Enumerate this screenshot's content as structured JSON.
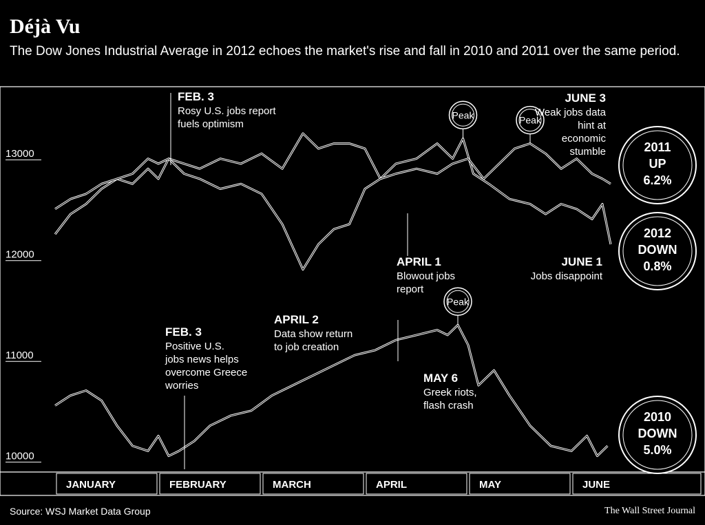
{
  "header": {
    "title": "Déjà Vu",
    "subtitle": "The Dow Jones Industrial Average in 2012 echoes the market's rise and fall in 2010 and 2011 over the same period."
  },
  "footer": {
    "source": "Source: WSJ Market Data Group",
    "publisher": "The Wall Street Journal"
  },
  "colors": {
    "background": "#000000",
    "line": "#ffffff"
  },
  "peak_label": "Peak",
  "badges": [
    {
      "year": "2011",
      "direction": "UP",
      "change": "6.2%"
    },
    {
      "year": "2012",
      "direction": "DOWN",
      "change": "0.8%"
    },
    {
      "year": "2010",
      "direction": "DOWN",
      "change": "5.0%"
    }
  ],
  "annotations": [
    {
      "title": "FEB. 3",
      "lines": [
        "Rosy U.S. jobs report",
        "fuels optimism"
      ]
    },
    {
      "title": "JUNE 3",
      "lines": [
        "Weak jobs data",
        "hint at",
        "economic",
        "stumble"
      ]
    },
    {
      "title": "APRIL 1",
      "lines": [
        "Blowout jobs",
        "report"
      ]
    },
    {
      "title": "JUNE 1",
      "lines": [
        "Jobs disappoint"
      ]
    },
    {
      "title": "APRIL 2",
      "lines": [
        "Data show return",
        "to job creation"
      ]
    },
    {
      "title": "FEB. 3",
      "lines": [
        "Positive U.S.",
        "jobs news helps",
        "overcome Greece",
        "worries"
      ]
    },
    {
      "title": "MAY 6",
      "lines": [
        "Greek riots,",
        "flash crash"
      ]
    }
  ],
  "chart_data": {
    "type": "line",
    "title": "Déjà Vu",
    "subtitle": "The Dow Jones Industrial Average in 2012 echoes the market's rise and fall in 2010 and 2011 over the same period.",
    "xlabel": "",
    "ylabel": "",
    "x_categories": [
      "JANUARY",
      "FEBRUARY",
      "MARCH",
      "APRIL",
      "MAY",
      "JUNE"
    ],
    "y_ticks": [
      "13000",
      "12000",
      "11000",
      "10000"
    ],
    "y_tick_values": [
      13000,
      12000,
      11000,
      10000
    ],
    "ylim": [
      9950,
      13500
    ],
    "xlim": [
      0,
      5.4
    ],
    "grid": false,
    "series": [
      {
        "name": "2011",
        "x": [
          0,
          0.15,
          0.3,
          0.45,
          0.6,
          0.75,
          0.9,
          1.0,
          1.1,
          1.25,
          1.4,
          1.6,
          1.8,
          2.0,
          2.2,
          2.4,
          2.55,
          2.7,
          2.85,
          3.0,
          3.15,
          3.3,
          3.5,
          3.7,
          3.85,
          3.95,
          4.05,
          4.2,
          4.4,
          4.6,
          4.75,
          4.9,
          5.05,
          5.2,
          5.3,
          5.38
        ],
        "values": [
          12200,
          12400,
          12500,
          12650,
          12750,
          12700,
          12850,
          12750,
          12950,
          12900,
          12850,
          12950,
          12900,
          13000,
          12850,
          13200,
          13050,
          13100,
          13100,
          13050,
          12750,
          12900,
          12950,
          13100,
          12950,
          13150,
          12800,
          12700,
          12550,
          12500,
          12400,
          12500,
          12450,
          12350,
          12500,
          12100
        ]
      },
      {
        "name": "2012",
        "x": [
          0,
          0.15,
          0.3,
          0.45,
          0.6,
          0.75,
          0.9,
          1.0,
          1.1,
          1.25,
          1.4,
          1.6,
          1.8,
          2.0,
          2.2,
          2.4,
          2.55,
          2.7,
          2.85,
          3.0,
          3.15,
          3.3,
          3.5,
          3.7,
          3.85,
          4.0,
          4.15,
          4.3,
          4.45,
          4.6,
          4.75,
          4.9,
          5.05,
          5.2,
          5.3,
          5.38
        ],
        "values": [
          12450,
          12550,
          12600,
          12700,
          12750,
          12800,
          12950,
          12900,
          12950,
          12800,
          12750,
          12650,
          12700,
          12600,
          12300,
          11850,
          12100,
          12250,
          12300,
          12650,
          12750,
          12800,
          12850,
          12800,
          12900,
          12950,
          12750,
          12900,
          13050,
          13100,
          13000,
          12850,
          12950,
          12800,
          12750,
          12700
        ]
      },
      {
        "name": "2010",
        "x": [
          0,
          0.15,
          0.3,
          0.45,
          0.6,
          0.75,
          0.9,
          1.0,
          1.1,
          1.2,
          1.35,
          1.5,
          1.7,
          1.9,
          2.1,
          2.3,
          2.5,
          2.7,
          2.9,
          3.1,
          3.3,
          3.5,
          3.7,
          3.8,
          3.9,
          4.0,
          4.1,
          4.25,
          4.4,
          4.6,
          4.8,
          5.0,
          5.15,
          5.25,
          5.35
        ],
        "values": [
          10500,
          10600,
          10650,
          10550,
          10300,
          10100,
          10050,
          10200,
          10000,
          10050,
          10150,
          10300,
          10400,
          10450,
          10600,
          10700,
          10800,
          10900,
          11000,
          11050,
          11150,
          11200,
          11250,
          11200,
          11300,
          11100,
          10700,
          10850,
          10600,
          10300,
          10100,
          10050,
          10200,
          10000,
          10100
        ]
      }
    ],
    "peaks": [
      {
        "series": "2011",
        "x": 3.95,
        "value": 13150
      },
      {
        "series": "2012",
        "x": 4.6,
        "value": 13100
      },
      {
        "series": "2010",
        "x": 3.9,
        "value": 11300
      }
    ]
  }
}
